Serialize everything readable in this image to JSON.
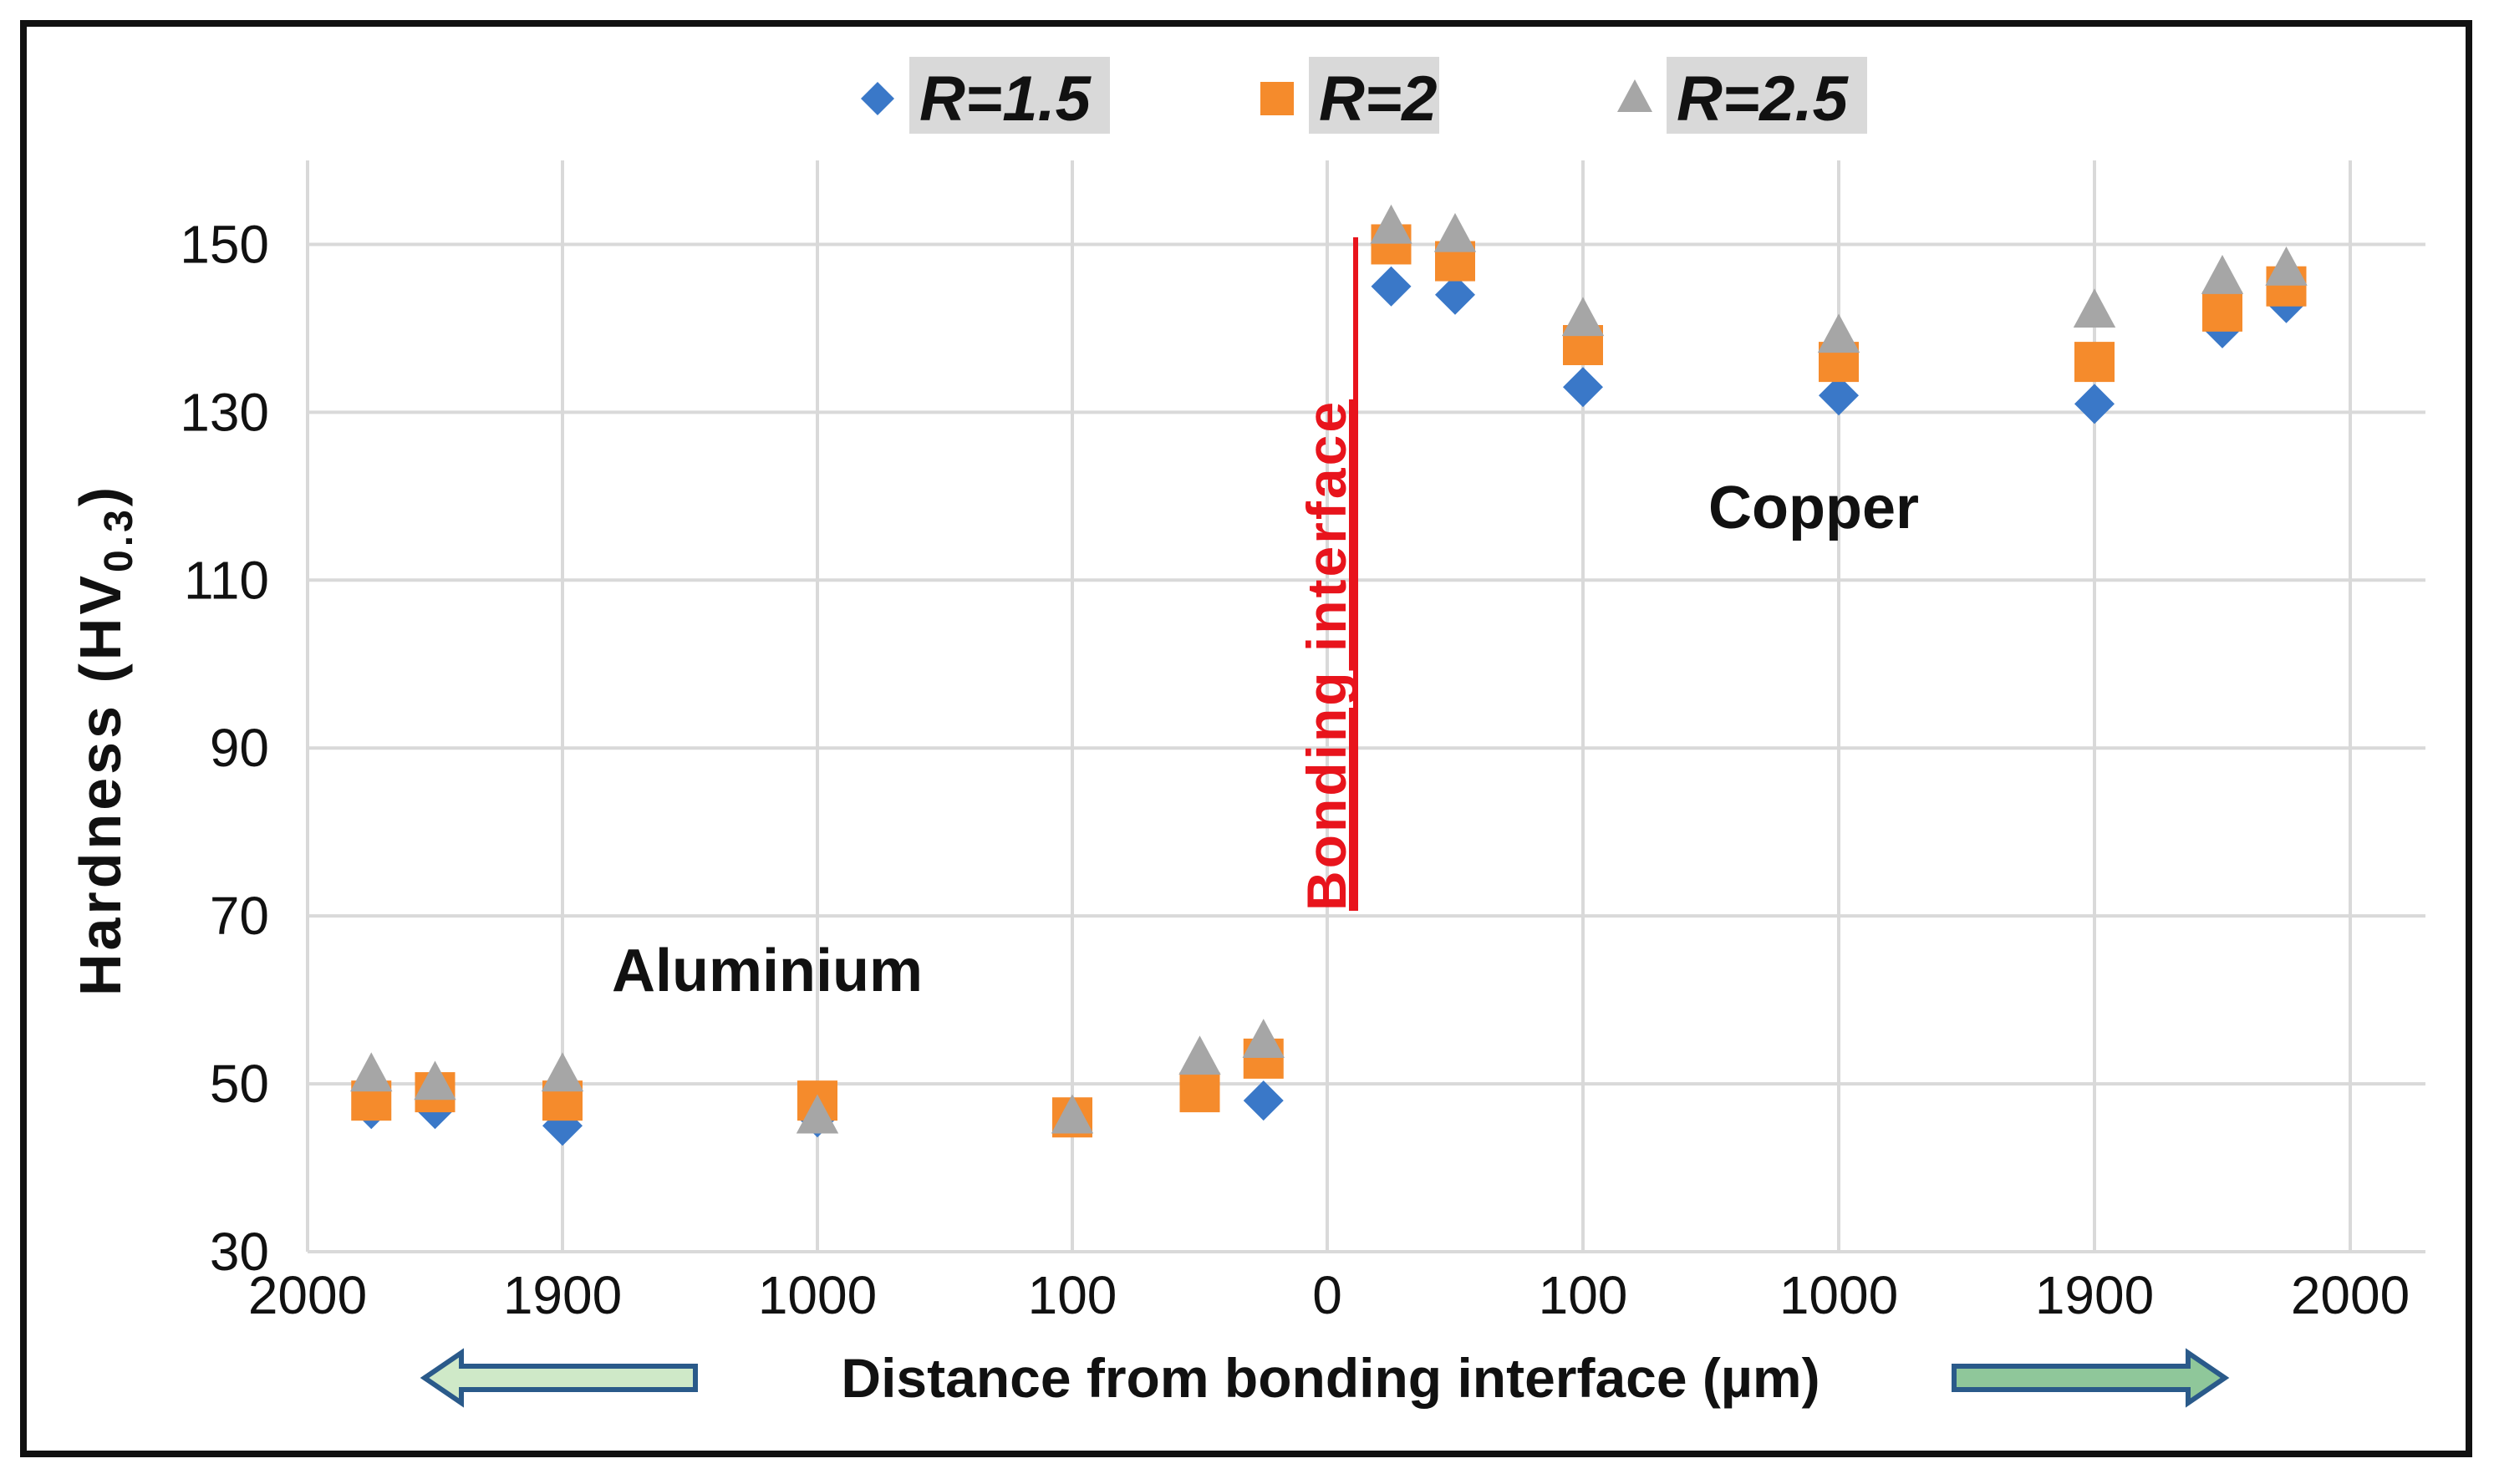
{
  "chart_data": {
    "type": "scatter",
    "title": "",
    "xlabel": "Distance from bonding interface (µm)",
    "ylabel": "Hardness (HV",
    "ylabel_sub": "0.3",
    "ylabel_close": ")",
    "ylim": [
      30,
      160
    ],
    "yticks": [
      30,
      50,
      70,
      90,
      110,
      130,
      150
    ],
    "xlim": [
      -2000,
      2000
    ],
    "x_tick_labels": [
      "2000",
      "1900",
      "1000",
      "100",
      "0",
      "100",
      "1000",
      "1900",
      "2000"
    ],
    "x": [
      -1975,
      -1950,
      -1900,
      -1000,
      -100,
      -50,
      -25,
      25,
      50,
      100,
      1000,
      1900,
      1950,
      1975
    ],
    "series": [
      {
        "name": "R=1.5",
        "marker": "diamond",
        "color": "#3a78c8",
        "values": [
          47,
          47,
          45,
          46,
          46,
          49,
          48,
          145,
          144,
          133,
          132,
          131,
          140,
          143
        ]
      },
      {
        "name": "R=2",
        "marker": "square",
        "color": "#f58b2c",
        "values": [
          48,
          49,
          48,
          48,
          46,
          49,
          53,
          150,
          148,
          138,
          136,
          136,
          142,
          145
        ]
      },
      {
        "name": "R=2.5",
        "marker": "triangle",
        "color": "#a6a6a6",
        "values": [
          51,
          50,
          51,
          46,
          46,
          53,
          55,
          152,
          151,
          141,
          139,
          142,
          146,
          147
        ]
      }
    ],
    "legend": {
      "position": "top",
      "entries": [
        "R=1.5",
        "R=2",
        "R=2.5"
      ]
    },
    "annotations": {
      "bonding_interface": "Bonding interface",
      "aluminium": "Aluminium",
      "copper": "Copper"
    },
    "grid": true
  },
  "colors": {
    "bond_line": "#e8141c",
    "arrow_fill": "#cfe9c8",
    "arrow_fill_right": "#8fc79a",
    "arrow_stroke": "#2a5a8a",
    "grid": "#d9d9d9"
  }
}
